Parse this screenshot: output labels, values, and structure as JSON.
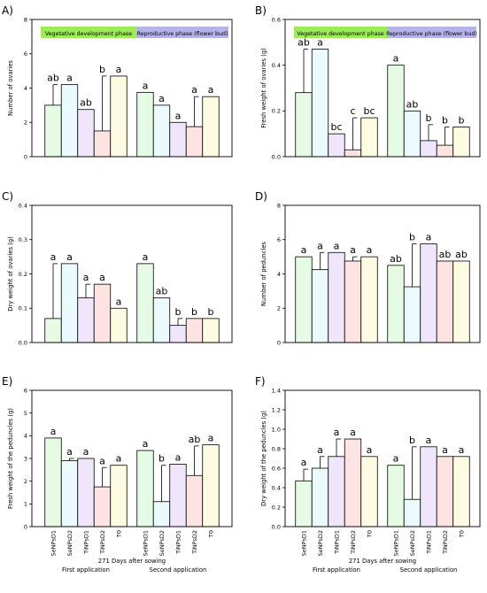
{
  "figure": {
    "group_labels": [
      "First application",
      "Second application"
    ],
    "xlabel": "271 Days after sowing",
    "treatments": [
      "SeNPsD1",
      "SeNPsD2",
      "TiNPsD1",
      "TiNPsD2",
      "T0"
    ],
    "treatment_colors": [
      "#e6fbe3",
      "#eafafd",
      "#efe6fb",
      "#fde3e1",
      "#fdfbe1"
    ],
    "phase_legend": {
      "vegetative": {
        "label": "Vegetative development phase",
        "color": "#9ceb57"
      },
      "reproductive": {
        "label": "Reproductive phase (flower bud)",
        "color": "#b6b2ea"
      }
    }
  },
  "chart_data": [
    {
      "panel": "A)",
      "type": "bar",
      "ylabel": "Number of ovaries",
      "ylim": [
        0,
        8
      ],
      "yticks": [
        "0",
        "2",
        "4",
        "6",
        "8"
      ],
      "legend": true,
      "series": [
        {
          "name": "First application",
          "values": [
            3.0,
            4.2,
            2.75,
            1.5,
            4.7
          ],
          "errors": [
            1.2,
            0,
            0,
            3.2,
            0
          ],
          "letters": [
            "ab",
            "a",
            "ab",
            "b",
            "a"
          ]
        },
        {
          "name": "Second application",
          "values": [
            3.75,
            3.0,
            2.0,
            1.75,
            3.5
          ],
          "errors": [
            0,
            0,
            0,
            1.75,
            0
          ],
          "letters": [
            "a",
            "a",
            "a",
            "a",
            "a"
          ]
        }
      ]
    },
    {
      "panel": "B)",
      "type": "bar",
      "ylabel": "Fresh weight of ovaries  (g)",
      "ylim": [
        0,
        0.6
      ],
      "yticks": [
        "0.0",
        "0.2",
        "0.4",
        "0.6"
      ],
      "legend": true,
      "series": [
        {
          "name": "First application",
          "values": [
            0.28,
            0.47,
            0.1,
            0.03,
            0.17
          ],
          "errors": [
            0.19,
            0,
            0,
            0.14,
            0
          ],
          "letters": [
            "ab",
            "a",
            "bc",
            "c",
            "bc"
          ]
        },
        {
          "name": "Second application",
          "values": [
            0.4,
            0.2,
            0.07,
            0.05,
            0.13
          ],
          "errors": [
            0,
            0,
            0.07,
            0.08,
            0
          ],
          "letters": [
            "a",
            "ab",
            "b",
            "b",
            "b"
          ]
        }
      ]
    },
    {
      "panel": "C)",
      "type": "bar",
      "ylabel": "Dry weight of ovaries  (g)",
      "ylim": [
        0,
        0.4
      ],
      "yticks": [
        "0.0",
        "0.1",
        "0.2",
        "0.3",
        "0.4"
      ],
      "legend": false,
      "series": [
        {
          "name": "First application",
          "values": [
            0.07,
            0.23,
            0.13,
            0.17,
            0.1
          ],
          "errors": [
            0.16,
            0,
            0.04,
            0,
            0
          ],
          "letters": [
            "a",
            "a",
            "a",
            "a",
            "a"
          ]
        },
        {
          "name": "Second application",
          "values": [
            0.23,
            0.13,
            0.05,
            0.07,
            0.07
          ],
          "errors": [
            0,
            0,
            0.02,
            0,
            0
          ],
          "letters": [
            "a",
            "ab",
            "b",
            "b",
            "b"
          ]
        }
      ]
    },
    {
      "panel": "D)",
      "type": "bar",
      "ylabel": "Number of peduncles",
      "ylim": [
        0,
        8
      ],
      "yticks": [
        "0",
        "2",
        "4",
        "6",
        "8"
      ],
      "legend": false,
      "series": [
        {
          "name": "First application",
          "values": [
            5.0,
            4.25,
            5.25,
            4.75,
            5.0
          ],
          "errors": [
            0,
            1.0,
            0,
            0.25,
            0
          ],
          "letters": [
            "a",
            "a",
            "a",
            "a",
            "a"
          ]
        },
        {
          "name": "Second application",
          "values": [
            4.5,
            3.25,
            5.75,
            4.75,
            4.75
          ],
          "errors": [
            0,
            2.5,
            0,
            0,
            0
          ],
          "letters": [
            "ab",
            "b",
            "a",
            "ab",
            "ab"
          ]
        }
      ]
    },
    {
      "panel": "E)",
      "type": "bar",
      "ylabel": "Fresh weight of the peduncles  (g)",
      "ylim": [
        0,
        6
      ],
      "yticks": [
        "0",
        "1",
        "2",
        "3",
        "4",
        "5",
        "6"
      ],
      "legend": false,
      "series": [
        {
          "name": "First application",
          "values": [
            3.9,
            2.9,
            3.0,
            1.75,
            2.7
          ],
          "errors": [
            0,
            0.1,
            0,
            0.85,
            0
          ],
          "letters": [
            "a",
            "a",
            "a",
            "a",
            "a"
          ]
        },
        {
          "name": "Second application",
          "values": [
            3.35,
            1.1,
            2.75,
            2.25,
            3.6
          ],
          "errors": [
            0,
            1.6,
            0,
            1.3,
            0
          ],
          "letters": [
            "a",
            "b",
            "a",
            "ab",
            "a"
          ]
        }
      ]
    },
    {
      "panel": "F)",
      "type": "bar",
      "ylabel": "Dry weight of the peduncles  (g)",
      "ylim": [
        0,
        1.4
      ],
      "yticks": [
        "0.0",
        "0.2",
        "0.4",
        "0.6",
        "0.8",
        "1.0",
        "1.2",
        "1.4"
      ],
      "legend": false,
      "series": [
        {
          "name": "First application",
          "values": [
            0.47,
            0.6,
            0.72,
            0.9,
            0.72
          ],
          "errors": [
            0.12,
            0.12,
            0.18,
            0,
            0
          ],
          "letters": [
            "a",
            "a",
            "a",
            "a",
            "a"
          ]
        },
        {
          "name": "Second application",
          "values": [
            0.63,
            0.28,
            0.82,
            0.72,
            0.72
          ],
          "errors": [
            0,
            0.54,
            0,
            0,
            0
          ],
          "letters": [
            "a",
            "b",
            "a",
            "a",
            "a"
          ]
        }
      ]
    }
  ]
}
